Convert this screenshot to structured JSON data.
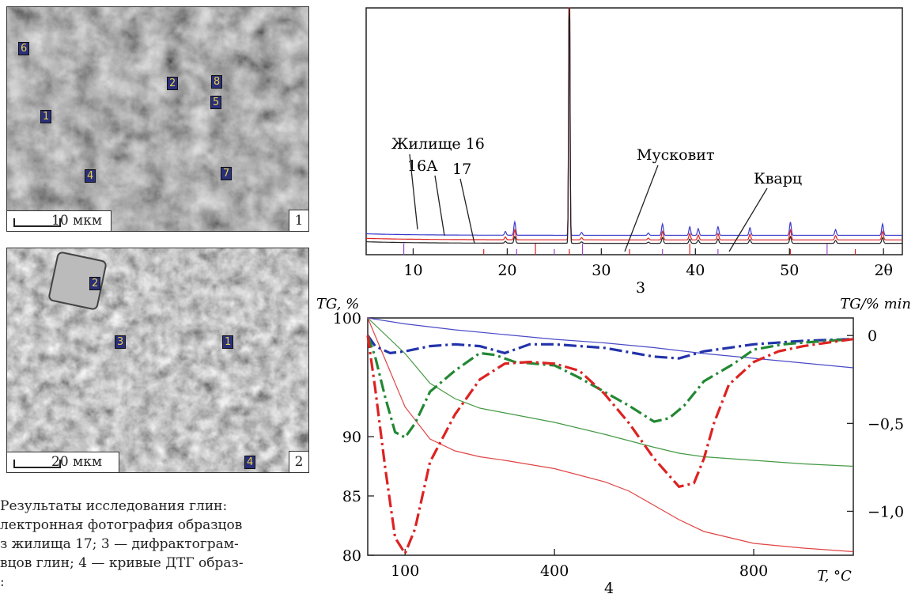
{
  "micrographs": [
    {
      "panel_number": "1",
      "scale_label": "10 мкм",
      "tags": [
        "6",
        "1",
        "2",
        "8",
        "5",
        "4",
        "7"
      ]
    },
    {
      "panel_number": "2",
      "scale_label": "20 мкм",
      "tags": [
        "2",
        "3",
        "1",
        "4"
      ]
    }
  ],
  "caption_lines": [
    " Результаты исследования глин:",
    "лектронная фотография образцов",
    "з жилища 17; 3 — дифрактограм-",
    "вцов глин; 4 — кривые ДТГ образ-",
    ":"
  ],
  "chart_data": [
    {
      "type": "line",
      "panel_label": "3",
      "x_tick_labels": [
        "10",
        "20",
        "30",
        "40",
        "50",
        "2θ"
      ],
      "xlim": [
        5,
        62
      ],
      "series": [
        {
          "name": "Жилище 16",
          "color": "#3a3acc",
          "offset": 0.52
        },
        {
          "name": "16А",
          "color": "#dd2222",
          "offset": 0.28
        },
        {
          "name": "17",
          "color": "#222222",
          "offset": 0.1
        }
      ],
      "peaks": [
        {
          "x": 20.8,
          "h": 0.7
        },
        {
          "x": 26.6,
          "h": 10.0
        },
        {
          "x": 36.5,
          "h": 0.6
        },
        {
          "x": 39.4,
          "h": 0.45
        },
        {
          "x": 40.3,
          "h": 0.35
        },
        {
          "x": 42.4,
          "h": 0.45
        },
        {
          "x": 45.8,
          "h": 0.4
        },
        {
          "x": 50.1,
          "h": 0.7
        },
        {
          "x": 54.9,
          "h": 0.3
        },
        {
          "x": 59.9,
          "h": 0.6
        },
        {
          "x": 19.8,
          "h": 0.2
        },
        {
          "x": 27.9,
          "h": 0.15
        },
        {
          "x": 35.0,
          "h": 0.12
        }
      ],
      "annotations": [
        "Жилище 16",
        "16А",
        "17",
        "Мусковит",
        "Кварц"
      ]
    },
    {
      "type": "line",
      "panel_label": "4",
      "ylabel_left": "TG, %",
      "ylabel_right": "TG/% min",
      "xlabel": "T, °C",
      "x_tick_labels": [
        "100",
        "400",
        "800"
      ],
      "y_left_ticks": [
        "100",
        "90",
        "85",
        "80"
      ],
      "y_right_ticks": [
        "0",
        "−0,5",
        "−1,0"
      ],
      "xlim": [
        25,
        1000
      ],
      "ylim_left": [
        80,
        100
      ],
      "ylim_right": [
        -1.25,
        0.1
      ],
      "tg_series": [
        {
          "color": "#4a4ac8",
          "x": [
            25,
            100,
            200,
            300,
            400,
            500,
            600,
            700,
            800,
            900,
            1000
          ],
          "y": [
            100,
            99.5,
            99.0,
            98.6,
            98.2,
            97.9,
            97.5,
            97.0,
            96.6,
            96.2,
            95.8
          ]
        },
        {
          "color": "#449944",
          "x": [
            25,
            100,
            150,
            200,
            250,
            300,
            400,
            500,
            600,
            650,
            700,
            800,
            900,
            1000
          ],
          "y": [
            100,
            97.0,
            94.5,
            93.2,
            92.4,
            92.0,
            91.2,
            90.2,
            89.1,
            88.6,
            88.3,
            88.0,
            87.7,
            87.5
          ]
        },
        {
          "color": "#e04444",
          "x": [
            25,
            60,
            100,
            150,
            200,
            250,
            300,
            400,
            500,
            550,
            600,
            650,
            700,
            800,
            900,
            1000
          ],
          "y": [
            100,
            96.5,
            92.5,
            89.8,
            88.8,
            88.3,
            88.0,
            87.3,
            86.2,
            85.4,
            84.2,
            83.0,
            82.0,
            81.0,
            80.6,
            80.3
          ]
        }
      ],
      "dtg_series": [
        {
          "color": "#2233aa",
          "x": [
            25,
            40,
            70,
            100,
            150,
            200,
            250,
            300,
            320,
            350,
            400,
            500,
            600,
            650,
            700,
            800,
            900,
            1000
          ],
          "y": [
            0,
            -0.06,
            -0.1,
            -0.09,
            -0.06,
            -0.05,
            -0.06,
            -0.1,
            -0.08,
            -0.05,
            -0.05,
            -0.07,
            -0.12,
            -0.13,
            -0.09,
            -0.05,
            -0.03,
            -0.02
          ]
        },
        {
          "color": "#228833",
          "x": [
            25,
            40,
            60,
            80,
            100,
            120,
            150,
            200,
            250,
            280,
            320,
            360,
            400,
            450,
            500,
            550,
            600,
            630,
            660,
            700,
            760,
            800,
            860,
            900,
            950,
            1000
          ],
          "y": [
            0,
            -0.12,
            -0.35,
            -0.55,
            -0.58,
            -0.5,
            -0.32,
            -0.2,
            -0.1,
            -0.11,
            -0.15,
            -0.16,
            -0.17,
            -0.24,
            -0.32,
            -0.4,
            -0.49,
            -0.47,
            -0.4,
            -0.26,
            -0.16,
            -0.08,
            -0.05,
            -0.04,
            -0.03,
            -0.02
          ]
        },
        {
          "color": "#dd2222",
          "x": [
            25,
            40,
            60,
            80,
            100,
            120,
            150,
            200,
            250,
            300,
            350,
            400,
            450,
            500,
            550,
            600,
            650,
            680,
            700,
            720,
            750,
            800,
            850,
            900,
            950,
            1000
          ],
          "y": [
            0,
            -0.3,
            -0.75,
            -1.15,
            -1.24,
            -1.1,
            -0.72,
            -0.45,
            -0.25,
            -0.16,
            -0.15,
            -0.16,
            -0.2,
            -0.33,
            -0.5,
            -0.7,
            -0.86,
            -0.84,
            -0.7,
            -0.5,
            -0.28,
            -0.15,
            -0.09,
            -0.06,
            -0.04,
            -0.02
          ]
        }
      ]
    }
  ]
}
